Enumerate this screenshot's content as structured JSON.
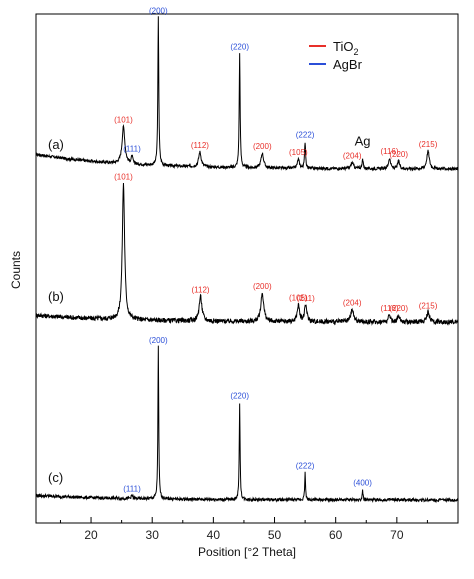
{
  "chart_data": {
    "type": "line",
    "xlabel": "Position [°2 Theta]",
    "ylabel": "Counts",
    "xlim": [
      11,
      80
    ],
    "x_ticks": [
      "20",
      "30",
      "40",
      "50",
      "60",
      "70"
    ],
    "x_tick_values": [
      20,
      30,
      40,
      50,
      60,
      70
    ],
    "grid": false,
    "colors": {
      "TiO2": "#e8302a",
      "AgBr": "#2b4fd8",
      "trace": "#000000"
    },
    "legend": {
      "placement": "top-right",
      "entries": [
        {
          "name": "TiO",
          "sub": "2",
          "color": "#e8302a"
        },
        {
          "name": "AgBr",
          "sub": "",
          "color": "#2b4fd8"
        }
      ]
    },
    "series": [
      {
        "name": "(a)",
        "baseline": 0.1,
        "peaks": [
          {
            "x": 25.3,
            "h": 0.25,
            "w": 0.55,
            "label": "(101)",
            "phase": "TiO2"
          },
          {
            "x": 26.7,
            "h": 0.05,
            "w": 0.3,
            "label": "(111)",
            "phase": "AgBr"
          },
          {
            "x": 31.0,
            "h": 1.0,
            "w": 0.18,
            "label": "(200)",
            "phase": "AgBr"
          },
          {
            "x": 37.8,
            "h": 0.1,
            "w": 0.5,
            "label": "(112)",
            "phase": "TiO2"
          },
          {
            "x": 44.3,
            "h": 0.77,
            "w": 0.18,
            "label": "(220)",
            "phase": "AgBr"
          },
          {
            "x": 48.0,
            "h": 0.1,
            "w": 0.5,
            "label": "(200)",
            "phase": "TiO2"
          },
          {
            "x": 53.9,
            "h": 0.06,
            "w": 0.4,
            "label": "(105)",
            "phase": "TiO2"
          },
          {
            "x": 55.0,
            "h": 0.18,
            "w": 0.2,
            "label": "(222)",
            "phase": "AgBr"
          },
          {
            "x": 62.7,
            "h": 0.04,
            "w": 0.5,
            "label": "(204)",
            "phase": "TiO2"
          },
          {
            "x": 64.4,
            "h": 0.06,
            "w": 0.25,
            "label": "Ag",
            "phase": "Ag"
          },
          {
            "x": 68.8,
            "h": 0.07,
            "w": 0.4,
            "label": "(116)",
            "phase": "TiO2"
          },
          {
            "x": 70.3,
            "h": 0.05,
            "w": 0.4,
            "label": "(220)",
            "phase": "TiO2"
          },
          {
            "x": 75.1,
            "h": 0.12,
            "w": 0.5,
            "label": "(215)",
            "phase": "TiO2"
          }
        ]
      },
      {
        "name": "(b)",
        "baseline": 0.05,
        "peaks": [
          {
            "x": 25.3,
            "h": 1.0,
            "w": 0.45,
            "label": "(101)",
            "phase": "TiO2"
          },
          {
            "x": 37.9,
            "h": 0.18,
            "w": 0.55,
            "label": "(112)",
            "phase": "TiO2"
          },
          {
            "x": 48.0,
            "h": 0.21,
            "w": 0.55,
            "label": "(200)",
            "phase": "TiO2"
          },
          {
            "x": 53.9,
            "h": 0.12,
            "w": 0.45,
            "label": "(105)",
            "phase": "TiO2"
          },
          {
            "x": 55.1,
            "h": 0.12,
            "w": 0.45,
            "label": "(211)",
            "phase": "TiO2"
          },
          {
            "x": 62.7,
            "h": 0.09,
            "w": 0.55,
            "label": "(204)",
            "phase": "TiO2"
          },
          {
            "x": 68.8,
            "h": 0.05,
            "w": 0.4,
            "label": "(116)",
            "phase": "TiO2"
          },
          {
            "x": 70.3,
            "h": 0.05,
            "w": 0.4,
            "label": "(220)",
            "phase": "TiO2"
          },
          {
            "x": 75.1,
            "h": 0.07,
            "w": 0.55,
            "label": "(215)",
            "phase": "TiO2"
          }
        ]
      },
      {
        "name": "(c)",
        "baseline": 0.03,
        "peaks": [
          {
            "x": 26.7,
            "h": 0.02,
            "w": 0.3,
            "label": "(111)",
            "phase": "AgBr"
          },
          {
            "x": 31.0,
            "h": 1.0,
            "w": 0.16,
            "label": "(200)",
            "phase": "AgBr"
          },
          {
            "x": 44.3,
            "h": 0.64,
            "w": 0.16,
            "label": "(220)",
            "phase": "AgBr"
          },
          {
            "x": 55.0,
            "h": 0.18,
            "w": 0.16,
            "label": "(222)",
            "phase": "AgBr"
          },
          {
            "x": 64.4,
            "h": 0.07,
            "w": 0.16,
            "label": "(400)",
            "phase": "AgBr"
          }
        ]
      }
    ]
  }
}
